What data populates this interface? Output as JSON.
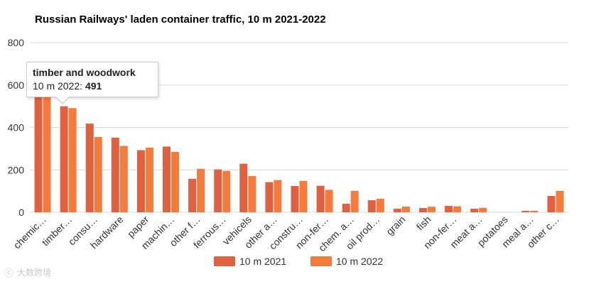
{
  "colors": {
    "series_2021": "#E0603F",
    "series_2022": "#F57B3D",
    "grid": "#D9D9D9",
    "axis_text": "#333333"
  },
  "chart_data": {
    "type": "bar",
    "title": "Russian Railways' laden container traffic, 10 m 2021-2022",
    "xlabel": "",
    "ylabel": "",
    "ylim": [
      0,
      800
    ],
    "yticks": [
      0,
      200,
      400,
      600,
      800
    ],
    "grid": true,
    "legend_position": "bottom",
    "categories": [
      "chemic…",
      "timber…",
      "consu…",
      "hardware",
      "paper",
      "machin…",
      "other f…",
      "ferrous…",
      "vehicels",
      "other a…",
      "constru…",
      "non-fer…",
      "chem. a…",
      "oil prod…",
      "grain",
      "fish",
      "non-fer…",
      "meat a…",
      "potatoes",
      "meal a…",
      "other c…"
    ],
    "series": [
      {
        "name": "10 m 2021",
        "values": [
          548,
          500,
          418,
          352,
          293,
          310,
          158,
          202,
          229,
          142,
          124,
          125,
          40,
          57,
          17,
          20,
          30,
          17,
          0,
          7,
          77
        ]
      },
      {
        "name": "10 m 2022",
        "values": [
          555,
          491,
          355,
          313,
          305,
          285,
          205,
          195,
          171,
          152,
          148,
          106,
          101,
          64,
          27,
          26,
          28,
          21,
          0,
          7,
          101
        ]
      }
    ]
  },
  "tooltip": {
    "title": "timber and woodwork",
    "series_label": "10 m 2022: ",
    "value": "491"
  },
  "watermark": {
    "mark": "ⓒ",
    "text": "大数跨境"
  }
}
